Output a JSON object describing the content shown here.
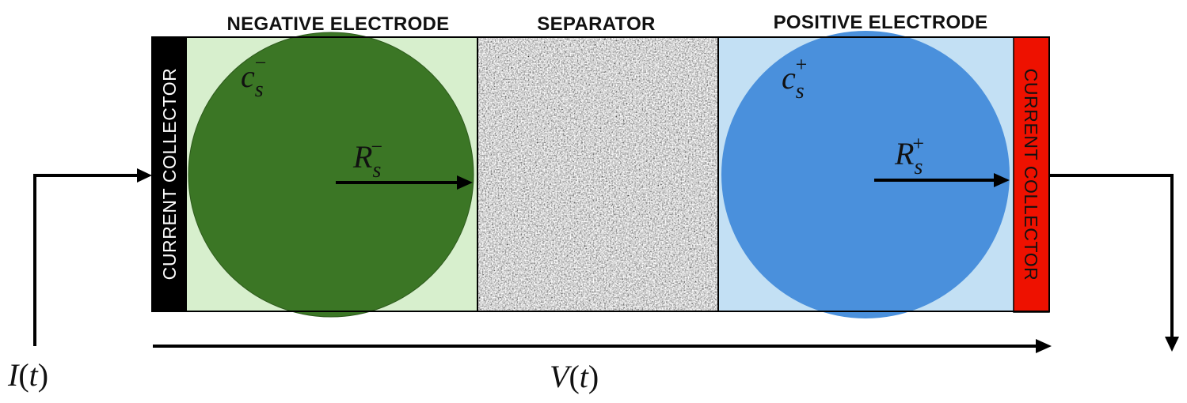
{
  "headers": {
    "negative": "NEGATIVE ELECTRODE",
    "separator": "SEPARATOR",
    "positive": "POSITIVE ELECTRODE"
  },
  "collectors": {
    "left": "CURRENT COLLECTOR",
    "right": "CURRENT COLLECTOR"
  },
  "labels": {
    "c_base": "c",
    "c_sub": "s",
    "c_neg_sup": "−",
    "c_pos_sup": "+",
    "r_base": "R",
    "r_sub": "s",
    "r_neg_sup": "−",
    "r_pos_sup": "+",
    "current": {
      "fn": "I",
      "open": "(",
      "arg": "t",
      "close": ")"
    },
    "voltage": {
      "fn": "V",
      "open": "(",
      "arg": "t",
      "close": ")"
    }
  },
  "colors": {
    "left_collector": "#000000",
    "right_collector": "#ee1100",
    "negative_bg": "#d7efcd",
    "negative_particle": "#3b7625",
    "separator_base": "#9c9c9c",
    "positive_bg": "#c3e0f4",
    "positive_particle": "#4a90dc"
  }
}
